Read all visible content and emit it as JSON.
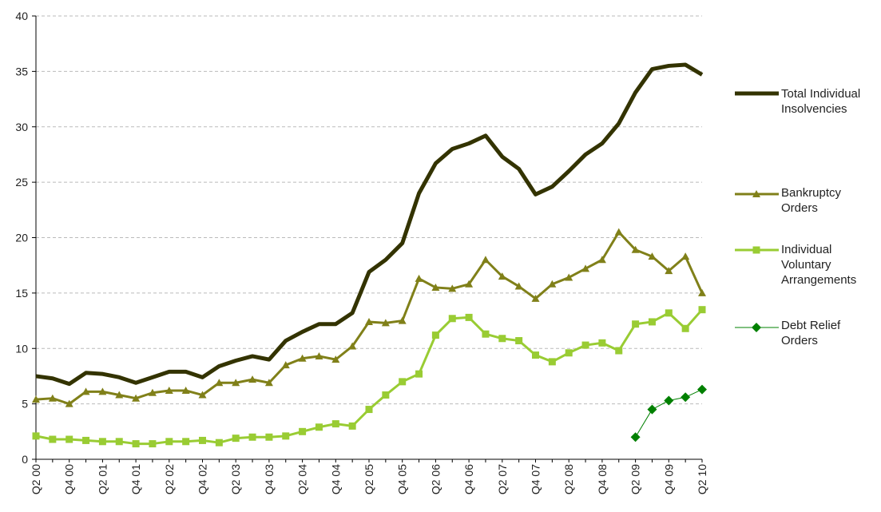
{
  "chart_data": {
    "type": "line",
    "categories": [
      "Q2 00",
      null,
      "Q4 00",
      null,
      "Q2 01",
      null,
      "Q4 01",
      null,
      "Q2 02",
      null,
      "Q4 02",
      null,
      "Q2 03",
      null,
      "Q4 03",
      null,
      "Q2 04",
      null,
      "Q4 04",
      null,
      "Q2 05",
      null,
      "Q4 05",
      null,
      "Q2 06",
      null,
      "Q4 06",
      null,
      "Q2 07",
      null,
      "Q4 07",
      null,
      "Q2 08",
      null,
      "Q4 08",
      null,
      "Q2 09",
      null,
      "Q4 09",
      null,
      "Q2 10"
    ],
    "series": [
      {
        "name": "Total Individual Insolvencies",
        "color": "#333300",
        "marker": "none",
        "width": 5,
        "values": [
          7.5,
          7.3,
          6.8,
          7.8,
          7.7,
          7.4,
          6.9,
          7.4,
          7.9,
          7.9,
          7.4,
          8.4,
          8.9,
          9.3,
          9.0,
          10.7,
          11.5,
          12.2,
          12.2,
          13.2,
          16.9,
          18.0,
          19.5,
          24.0,
          26.7,
          28.0,
          28.5,
          29.2,
          27.3,
          26.2,
          23.9,
          24.6,
          26.0,
          27.5,
          28.5,
          30.3,
          33.1,
          35.2,
          35.5,
          35.6,
          34.7
        ]
      },
      {
        "name": "Bankruptcy Orders",
        "color": "#808019",
        "marker": "triangle",
        "width": 3,
        "values": [
          5.4,
          5.5,
          5.0,
          6.1,
          6.1,
          5.8,
          5.5,
          6.0,
          6.2,
          6.2,
          5.8,
          6.9,
          6.9,
          7.2,
          6.9,
          8.5,
          9.1,
          9.3,
          9.0,
          10.2,
          12.4,
          12.3,
          12.5,
          16.3,
          15.5,
          15.4,
          15.8,
          18.0,
          16.5,
          15.6,
          14.5,
          15.8,
          16.4,
          17.2,
          18.0,
          20.5,
          18.9,
          18.3,
          17.0,
          18.3,
          15.0
        ]
      },
      {
        "name": "Individual Voluntary Arrangements",
        "color": "#99cc33",
        "marker": "square",
        "width": 3,
        "values": [
          2.1,
          1.8,
          1.8,
          1.7,
          1.6,
          1.6,
          1.4,
          1.4,
          1.6,
          1.6,
          1.7,
          1.5,
          1.9,
          2.0,
          2.0,
          2.1,
          2.5,
          2.9,
          3.2,
          3.0,
          4.5,
          5.8,
          7.0,
          7.7,
          11.2,
          12.7,
          12.8,
          11.3,
          10.9,
          10.7,
          9.4,
          8.8,
          9.6,
          10.3,
          10.5,
          9.8,
          12.2,
          12.4,
          13.2,
          11.8,
          13.5
        ]
      },
      {
        "name": "Debt Relief Orders",
        "color": "#008000",
        "marker": "diamond",
        "width": 1,
        "values": [
          null,
          null,
          null,
          null,
          null,
          null,
          null,
          null,
          null,
          null,
          null,
          null,
          null,
          null,
          null,
          null,
          null,
          null,
          null,
          null,
          null,
          null,
          null,
          null,
          null,
          null,
          null,
          null,
          null,
          null,
          null,
          null,
          null,
          null,
          null,
          null,
          2.0,
          4.5,
          5.3,
          5.6,
          6.3
        ]
      }
    ],
    "ylim": [
      0,
      40
    ],
    "yticks": [
      0,
      5,
      10,
      15,
      20,
      25,
      30,
      35,
      40
    ],
    "grid": true,
    "legend": "right"
  }
}
